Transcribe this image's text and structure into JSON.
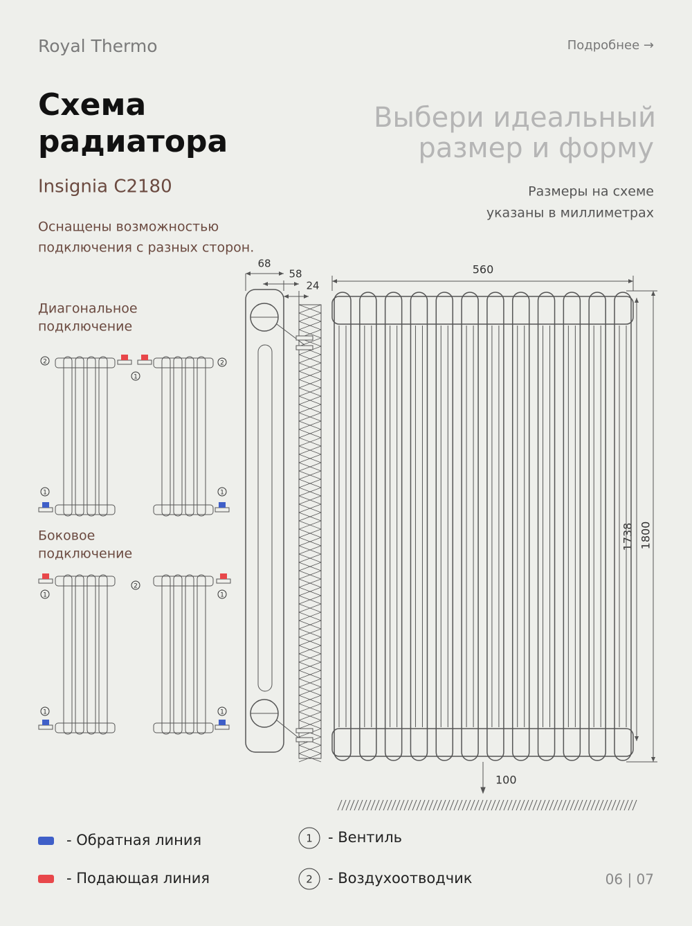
{
  "header": {
    "brand": "Royal Thermo",
    "more_link": "Подробнее →"
  },
  "title": {
    "lines": [
      "Схема",
      "радиатора"
    ],
    "model": "Insignia C2180",
    "description_lines": [
      "Оснащены возможностью",
      "подключения с разных сторон."
    ]
  },
  "tagline": {
    "lines": [
      "Выбери идеальный",
      "размер и форму"
    ],
    "note_lines": [
      "Размеры на схеме",
      "указаны в миллиметрах"
    ]
  },
  "connections": {
    "diagonal": [
      "Диагональное",
      "подключение"
    ],
    "side": [
      "Боковое",
      "подключение"
    ]
  },
  "dimensions": {
    "depth": 68,
    "bracket": 58,
    "wall_gap": 24,
    "width": 560,
    "axis_height": 1738,
    "height": 1800,
    "floor_gap": 100
  },
  "legend": {
    "lines": [
      {
        "color": "#3f5fc8",
        "label": "- Обратная линия"
      },
      {
        "color": "#e8474a",
        "label": "- Подающая линия"
      }
    ],
    "items": [
      {
        "marker": 1,
        "label": "- Вентиль"
      },
      {
        "marker": 2,
        "label": "- Воздухоотводчик"
      }
    ]
  },
  "page": "06 | 07"
}
